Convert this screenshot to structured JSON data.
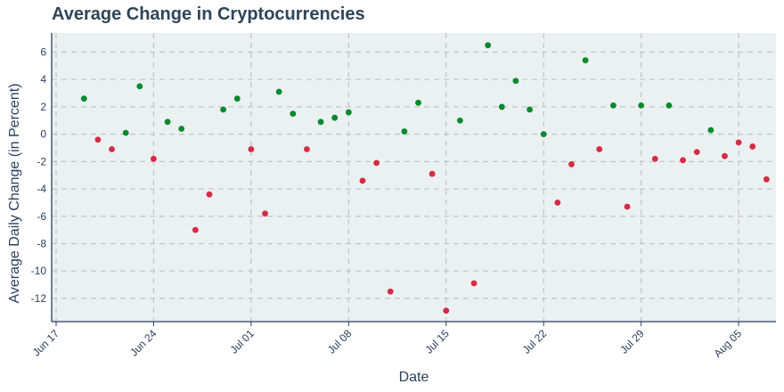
{
  "chart_data": {
    "type": "scatter",
    "title": "Average Change in Cryptocurrencies",
    "xlabel": "Date",
    "ylabel": "Average Daily Change (in Percent)",
    "x_tick_labels": [
      "Jun 17",
      "Jun 24",
      "Jul 01",
      "Jul 08",
      "Jul 15",
      "Jul 22",
      "Jul 29",
      "Aug 05"
    ],
    "x_range": [
      "2024-06-17",
      "2024-08-08"
    ],
    "y_ticks": [
      6,
      4,
      2,
      0,
      -2,
      -4,
      -6,
      -8,
      -10,
      -12
    ],
    "ylim": [
      -13.7,
      7.4
    ],
    "grid": true,
    "colors": {
      "positive": "#008a2e",
      "negative": "#d62a45",
      "plot_bg": "#ebf0f0",
      "grid": "#c4c4c4",
      "axis": "#2a3f5f"
    },
    "points": [
      {
        "x": "2024-06-19",
        "y": 2.6
      },
      {
        "x": "2024-06-20",
        "y": -0.4
      },
      {
        "x": "2024-06-21",
        "y": -1.1
      },
      {
        "x": "2024-06-22",
        "y": 0.1
      },
      {
        "x": "2024-06-23",
        "y": 3.5
      },
      {
        "x": "2024-06-24",
        "y": -1.8
      },
      {
        "x": "2024-06-25",
        "y": 0.9
      },
      {
        "x": "2024-06-26",
        "y": 0.4
      },
      {
        "x": "2024-06-27",
        "y": -7.0
      },
      {
        "x": "2024-06-28",
        "y": -4.4
      },
      {
        "x": "2024-06-29",
        "y": 1.8
      },
      {
        "x": "2024-06-30",
        "y": 2.6
      },
      {
        "x": "2024-07-01",
        "y": -1.1
      },
      {
        "x": "2024-07-02",
        "y": -5.8
      },
      {
        "x": "2024-07-03",
        "y": 3.1
      },
      {
        "x": "2024-07-04",
        "y": 1.5
      },
      {
        "x": "2024-07-05",
        "y": -1.1
      },
      {
        "x": "2024-07-06",
        "y": 0.9
      },
      {
        "x": "2024-07-07",
        "y": 1.2
      },
      {
        "x": "2024-07-08",
        "y": 1.6
      },
      {
        "x": "2024-07-09",
        "y": -3.4
      },
      {
        "x": "2024-07-10",
        "y": -2.1
      },
      {
        "x": "2024-07-11",
        "y": -11.5
      },
      {
        "x": "2024-07-12",
        "y": 0.2
      },
      {
        "x": "2024-07-13",
        "y": 2.3
      },
      {
        "x": "2024-07-14",
        "y": -2.9
      },
      {
        "x": "2024-07-15",
        "y": -12.9
      },
      {
        "x": "2024-07-16",
        "y": 1.0
      },
      {
        "x": "2024-07-17",
        "y": -10.9
      },
      {
        "x": "2024-07-18",
        "y": 6.5
      },
      {
        "x": "2024-07-19",
        "y": 2.0
      },
      {
        "x": "2024-07-20",
        "y": 3.9
      },
      {
        "x": "2024-07-21",
        "y": 1.8
      },
      {
        "x": "2024-07-22",
        "y": 0.0
      },
      {
        "x": "2024-07-23",
        "y": -5.0
      },
      {
        "x": "2024-07-24",
        "y": -2.2
      },
      {
        "x": "2024-07-25",
        "y": 5.4
      },
      {
        "x": "2024-07-26",
        "y": -1.1
      },
      {
        "x": "2024-07-27",
        "y": 2.1
      },
      {
        "x": "2024-07-28",
        "y": -5.3
      },
      {
        "x": "2024-07-29",
        "y": 2.1
      },
      {
        "x": "2024-07-30",
        "y": -1.8
      },
      {
        "x": "2024-07-31",
        "y": 2.1
      },
      {
        "x": "2024-08-01",
        "y": -1.9
      },
      {
        "x": "2024-08-02",
        "y": -1.3
      },
      {
        "x": "2024-08-03",
        "y": 0.3
      },
      {
        "x": "2024-08-04",
        "y": -1.6
      },
      {
        "x": "2024-08-05",
        "y": -0.6
      },
      {
        "x": "2024-08-06",
        "y": -0.9
      },
      {
        "x": "2024-08-07",
        "y": -3.3
      }
    ]
  }
}
